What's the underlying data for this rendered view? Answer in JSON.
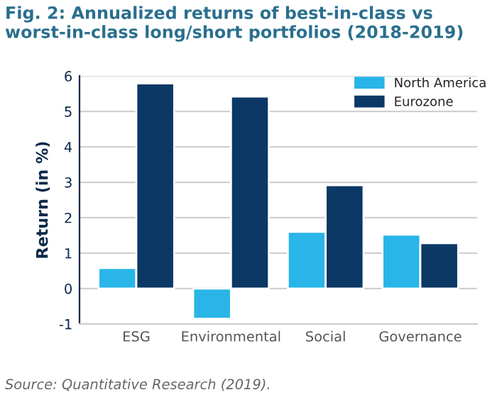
{
  "chart_data": {
    "type": "bar",
    "title": "Fig. 2: Annualized returns of best-in-class vs\nworst-in-class long/short portfolios (2018-2019)",
    "categories": [
      "ESG",
      "Environmental",
      "Social",
      "Governance"
    ],
    "series": [
      {
        "name": "North America",
        "color": "#29b5e8",
        "values": [
          0.58,
          -0.85,
          1.6,
          1.52
        ]
      },
      {
        "name": "Eurozone",
        "color": "#0c3866",
        "values": [
          5.79,
          5.42,
          2.92,
          1.28
        ]
      }
    ],
    "ylabel": "Return (in %)",
    "ylim": [
      -1,
      6
    ],
    "yticks": [
      -1,
      0,
      1,
      2,
      3,
      4,
      5,
      6
    ],
    "grid": "y",
    "legend": "top right",
    "annotations": [
      "Source: Quantitative Research (2019)."
    ]
  }
}
